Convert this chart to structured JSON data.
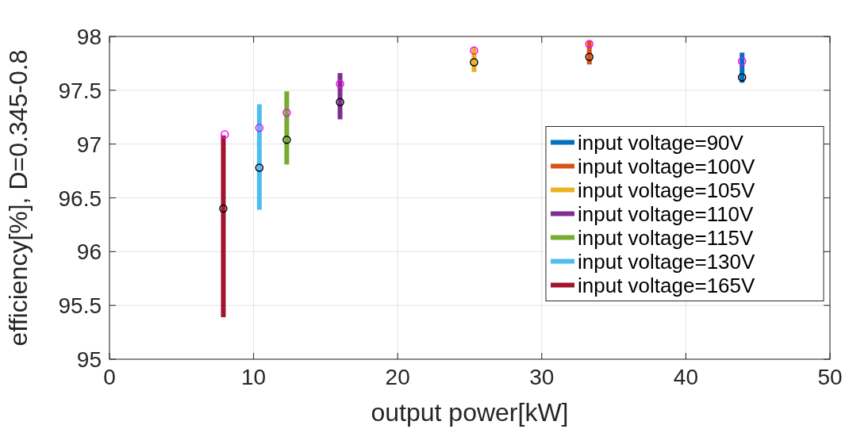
{
  "chart_data": {
    "type": "line",
    "xlabel": "output power[kW]",
    "ylabel": "efficiency[%], D=0.345-0.8",
    "xlim": [
      0,
      50
    ],
    "xticks": [
      0,
      10,
      20,
      30,
      40,
      50
    ],
    "ylim": [
      95,
      98
    ],
    "yticks": [
      95,
      95.5,
      96,
      96.5,
      97,
      97.5,
      98
    ],
    "grid": true,
    "legend": "right",
    "line_style": "solid",
    "series": [
      {
        "name": "input voltage=90V",
        "color": "#0072bd",
        "x": [
          43.9,
          43.9
        ],
        "values": [
          97.57,
          97.85
        ],
        "marker": "none"
      },
      {
        "name": "input voltage=100V",
        "color": "#d95319",
        "x": [
          33.3,
          33.3
        ],
        "values": [
          97.74,
          97.96
        ],
        "marker": "none"
      },
      {
        "name": "input voltage=105V",
        "color": "#edb120",
        "x": [
          25.3,
          25.3
        ],
        "values": [
          97.67,
          97.9
        ],
        "marker": "none"
      },
      {
        "name": "input voltage=110V",
        "color": "#7e2f8e",
        "x": [
          16.0,
          16.0
        ],
        "values": [
          97.23,
          97.66
        ],
        "marker": "none"
      },
      {
        "name": "input voltage=115V",
        "color": "#77ac30",
        "x": [
          12.3,
          12.3
        ],
        "values": [
          96.81,
          97.49
        ],
        "marker": "none"
      },
      {
        "name": "input voltage=130V",
        "color": "#4dbeee",
        "x": [
          10.4,
          10.4
        ],
        "values": [
          96.39,
          97.37
        ],
        "marker": "none"
      },
      {
        "name": "input voltage=165V",
        "color": "#a2142f",
        "x": [
          7.9,
          7.9
        ],
        "values": [
          95.39,
          97.08
        ],
        "marker": "none"
      },
      {
        "type": "scatter",
        "color": "#000000",
        "x": [
          43.9,
          33.3,
          25.3,
          16.0,
          12.3,
          10.4,
          7.9
        ],
        "values": [
          97.62,
          97.81,
          97.76,
          97.39,
          97.04,
          96.78,
          96.4
        ],
        "marker": "circle"
      },
      {
        "type": "scatter",
        "color": "#ff00ff",
        "x": [
          43.9,
          33.3,
          25.3,
          16.0,
          12.3,
          10.4,
          8.0
        ],
        "values": [
          97.77,
          97.93,
          97.87,
          97.56,
          97.29,
          97.15,
          97.09
        ],
        "marker": "circle"
      }
    ]
  }
}
